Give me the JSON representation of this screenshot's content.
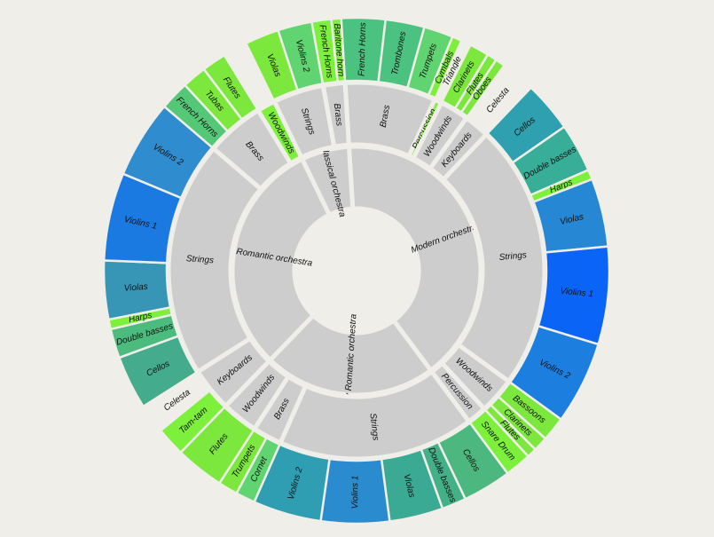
{
  "chart_data": {
    "type": "sunburst",
    "title": "",
    "total_label": "",
    "colors": {
      "background": "#efeee8",
      "inner_rings": "#cdcdcd",
      "separator": "#efeee8",
      "palette_low": "#7cf03a",
      "palette_high": "#0a64f5"
    },
    "root": {
      "children": [
        {
          "name": "Modern orchestra",
          "children": [
            {
              "name": "Brass",
              "children": [
                {
                  "name": "French Horns",
                  "value": 4.5,
                  "color": "#4cc280"
                },
                {
                  "name": "Trombones",
                  "value": 4,
                  "color": "#4cc280"
                },
                {
                  "name": "Trumpets",
                  "value": 3,
                  "color": "#60d470"
                },
                {
                  "name": "Cymbals",
                  "value": 1,
                  "color": "#7cf03a"
                }
              ]
            },
            {
              "name": "Percussion",
              "value": 5.5,
              "color": "#86f03c",
              "children": [
                {
                  "name": "Triangle",
                  "value": 1,
                  "color": "#efeee8"
                }
              ]
            },
            {
              "name": "Woodwinds",
              "children": [
                {
                  "name": "Clarinets",
                  "value": 2,
                  "color": "#7ce83e"
                },
                {
                  "name": "Flutes",
                  "value": 1,
                  "color": "#7ce83e"
                },
                {
                  "name": "Oboes",
                  "value": 1,
                  "color": "#7ce83e"
                }
              ]
            },
            {
              "name": "Keyboards",
              "children": [
                {
                  "name": "Celesta",
                  "value": 3.5,
                  "color": "#efeee8"
                }
              ]
            },
            {
              "name": "Strings",
              "children": [
                {
                  "name": "Cellos",
                  "value": 5.2,
                  "color": "#2fa0b0"
                },
                {
                  "name": "Double basses",
                  "value": 5,
                  "color": "#38ae98"
                },
                {
                  "name": "Harps",
                  "value": 1,
                  "color": "#7cf03a"
                },
                {
                  "name": "Violas",
                  "value": 7,
                  "color": "#2688d4"
                },
                {
                  "name": "Violins 1",
                  "value": 10,
                  "color": "#0a64f5"
                },
                {
                  "name": "Violins 2",
                  "value": 8.5,
                  "color": "#1c7fe0"
                }
              ]
            },
            {
              "name": "Woodwinds",
              "children": [
                {
                  "name": "Bassoons",
                  "value": 2.5,
                  "color": "#7ce83e"
                },
                {
                  "name": "Clarinets",
                  "value": 1.5,
                  "color": "#7ce83e"
                },
                {
                  "name": "Flutes",
                  "value": 1,
                  "color": "#7ce83e"
                }
              ]
            },
            {
              "name": "Percussion",
              "children": [
                {
                  "name": "Snare Drum",
                  "value": 2.7,
                  "color": "#7cf03a"
                }
              ]
            }
          ]
        },
        {
          "name": "Early Romantic orchestra",
          "children": [
            {
              "name": "Strings",
              "children": [
                {
                  "name": "Cellos",
                  "value": 5,
                  "color": "#4cb880"
                },
                {
                  "name": "Double basses",
                  "value": 2.5,
                  "color": "#44b088"
                },
                {
                  "name": "Violas",
                  "value": 5.5,
                  "color": "#3aaa94"
                },
                {
                  "name": "Violins 1",
                  "value": 7,
                  "color": "#2a8ccf"
                },
                {
                  "name": "Violins 2",
                  "value": 7,
                  "color": "#2f9eb3"
                }
              ]
            },
            {
              "name": "Brass",
              "children": [
                {
                  "name": "Cornet",
                  "value": 2,
                  "color": "#60d470"
                },
                {
                  "name": "Trumpets",
                  "value": 2,
                  "color": "#7ce83e"
                }
              ]
            },
            {
              "name": "Woodwinds",
              "children": [
                {
                  "name": "Flutes",
                  "value": 5,
                  "color": "#7ce83e"
                }
              ]
            }
          ]
        },
        {
          "name": "Late Romantic orchestra",
          "children": [
            {
              "name": "Keyboards",
              "children": [
                {
                  "name": "Tam-tam",
                  "value": 3,
                  "color": "#7cf03a"
                },
                {
                  "name": "Celesta",
                  "value": 3,
                  "color": "#efeee8"
                }
              ]
            },
            {
              "name": "Strings",
              "children": [
                {
                  "name": "Cellos",
                  "value": 5.5,
                  "color": "#44ac8c"
                },
                {
                  "name": "Double basses",
                  "value": 3,
                  "color": "#4cbc7e"
                },
                {
                  "name": "Harps",
                  "value": 1,
                  "color": "#7cf03a"
                },
                {
                  "name": "Violas",
                  "value": 6,
                  "color": "#3796b6"
                },
                {
                  "name": "Violins 1",
                  "value": 9,
                  "color": "#1a7ae2"
                },
                {
                  "name": "Violins 2",
                  "value": 8,
                  "color": "#2f8cce"
                }
              ]
            },
            {
              "name": "Brass",
              "children": [
                {
                  "name": "French Horns",
                  "value": 3,
                  "color": "#55c878"
                },
                {
                  "name": "Tubas",
                  "value": 2.5,
                  "color": "#7ce83e"
                },
                {
                  "name": "Flutes",
                  "value": 2.5,
                  "color": "#7ce83e"
                }
              ]
            },
            {
              "name": "Woodwinds",
              "value": 2.5,
              "color": "#7cf03a"
            }
          ]
        },
        {
          "name": "Classical orchestra",
          "children": [
            {
              "name": "Strings",
              "children": [
                {
                  "name": "Violas",
                  "value": 3.5,
                  "color": "#7ce83e"
                },
                {
                  "name": "Violins 2",
                  "value": 3.5,
                  "color": "#60d470"
                }
              ]
            },
            {
              "name": "Brass",
              "children": [
                {
                  "name": "French Horns",
                  "value": 2,
                  "color": "#7cf03a"
                },
                {
                  "name": "Baritone horn",
                  "value": 1,
                  "color": "#7cf03a"
                }
              ]
            }
          ]
        }
      ]
    }
  }
}
